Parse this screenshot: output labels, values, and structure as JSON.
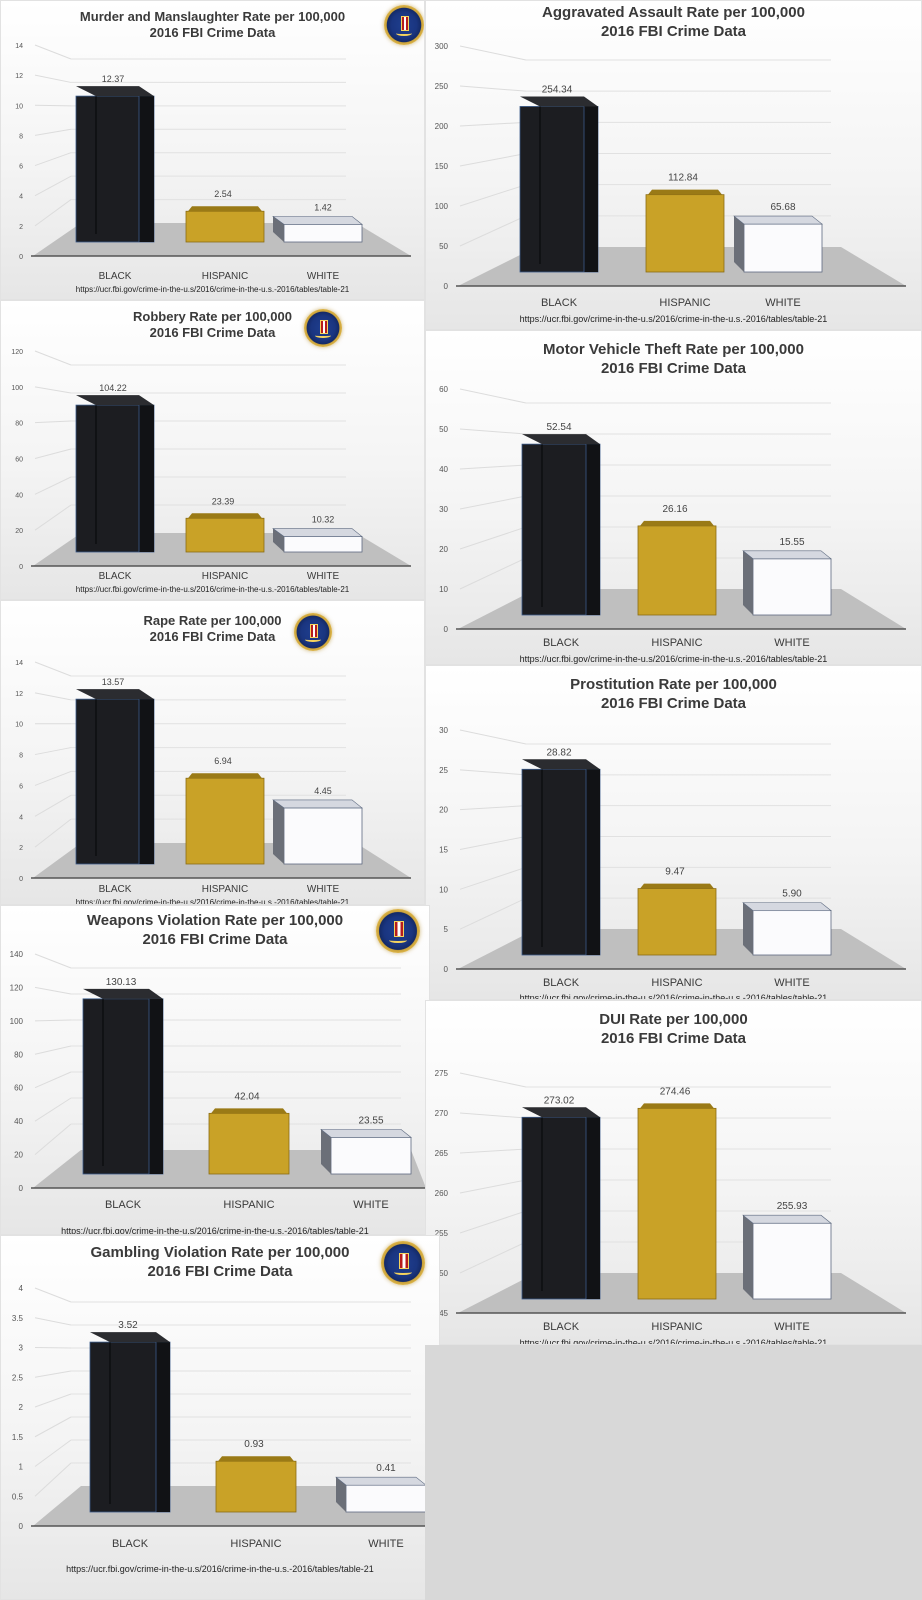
{
  "page": {
    "source_url": "https://ucr.fbi.gov/crime-in-the-u.s/2016/crime-in-the-u.s.-2016/tables/table-21",
    "subtitle": "2016 FBI Crime Data",
    "seal_icon": "fbi-seal-icon",
    "categories": [
      "BLACK",
      "HISPANIC",
      "WHITE"
    ],
    "colors": {
      "black": "#1c1d21",
      "hispanic": "#c9a227",
      "white": "#ffffff",
      "floor": "#bdbdbd",
      "background": "#d9d9d9"
    }
  },
  "panels": [
    {
      "id": "murder",
      "title": "Murder and Manslaughter Rate per 100,000",
      "subtitle": "2016 FBI Crime Data",
      "source": "https://ucr.fbi.gov/crime-in-the-u.s/2016/crime-in-the-u.s.-2016/tables/table-21"
    },
    {
      "id": "aggravated-assault",
      "title": "Aggravated Assault Rate per 100,000",
      "subtitle": "2016 FBI Crime Data",
      "source": "https://ucr.fbi.gov/crime-in-the-u.s/2016/crime-in-the-u.s.-2016/tables/table-21"
    },
    {
      "id": "robbery",
      "title": "Robbery Rate per 100,000",
      "subtitle": "2016 FBI Crime Data",
      "source": "https://ucr.fbi.gov/crime-in-the-u.s/2016/crime-in-the-u.s.-2016/tables/table-21"
    },
    {
      "id": "motor-vehicle-theft",
      "title": "Motor Vehicle Theft Rate per 100,000",
      "subtitle": "2016 FBI Crime Data",
      "source": "https://ucr.fbi.gov/crime-in-the-u.s/2016/crime-in-the-u.s.-2016/tables/table-21"
    },
    {
      "id": "rape",
      "title": "Rape Rate per 100,000",
      "subtitle": "2016 FBI Crime Data",
      "source": "https://ucr.fbi.gov/crime-in-the-u.s/2016/crime-in-the-u.s.-2016/tables/table-21"
    },
    {
      "id": "prostitution",
      "title": "Prostitution Rate per 100,000",
      "subtitle": "2016 FBI Crime Data",
      "source": "https://ucr.fbi.gov/crime-in-the-u.s/2016/crime-in-the-u.s.-2016/tables/table-21"
    },
    {
      "id": "weapons-violation",
      "title": "Weapons Violation Rate per 100,000",
      "subtitle": "2016 FBI Crime Data",
      "source": "https://ucr.fbi.gov/crime-in-the-u.s/2016/crime-in-the-u.s.-2016/tables/table-21"
    },
    {
      "id": "dui",
      "title": "DUI Rate per 100,000",
      "subtitle": "2016 FBI Crime Data",
      "source": "https://ucr.fbi.gov/crime-in-the-u.s/2016/crime-in-the-u.s.-2016/tables/table-21"
    },
    {
      "id": "gambling-violation",
      "title": "Gambling Violation Rate per 100,000",
      "subtitle": "2016 FBI Crime Data",
      "source": "https://ucr.fbi.gov/crime-in-the-u.s/2016/crime-in-the-u.s.-2016/tables/table-21"
    }
  ],
  "chart_data": [
    {
      "type": "bar",
      "title": "Murder and Manslaughter Rate per 100,000",
      "subtitle": "2016 FBI Crime Data",
      "categories": [
        "BLACK",
        "HISPANIC",
        "WHITE"
      ],
      "values": [
        12.37,
        2.54,
        1.42
      ],
      "value_labels": [
        "12.37",
        "2.54",
        "1.42"
      ],
      "yticks": [
        0,
        2,
        4,
        6,
        8,
        10,
        12,
        14
      ],
      "ylim": [
        0,
        14
      ],
      "xlabel": "",
      "ylabel": "",
      "grid": true,
      "legend": "none",
      "style": "3d-column",
      "source": "https://ucr.fbi.gov/crime-in-the-u.s/2016/crime-in-the-u.s.-2016/tables/table-21"
    },
    {
      "type": "bar",
      "title": "Aggravated Assault Rate per 100,000",
      "subtitle": "2016 FBI Crime Data",
      "categories": [
        "BLACK",
        "HISPANIC",
        "WHITE"
      ],
      "values": [
        254.34,
        112.84,
        65.68
      ],
      "value_labels": [
        "254.34",
        "112.84",
        "65.68"
      ],
      "yticks": [
        0,
        50,
        100,
        150,
        200,
        250,
        300
      ],
      "ylim": [
        0,
        300
      ],
      "xlabel": "",
      "ylabel": "",
      "grid": true,
      "legend": "none",
      "style": "3d-column",
      "source": "https://ucr.fbi.gov/crime-in-the-u.s/2016/crime-in-the-u.s.-2016/tables/table-21"
    },
    {
      "type": "bar",
      "title": "Robbery Rate per 100,000",
      "subtitle": "2016 FBI Crime Data",
      "categories": [
        "BLACK",
        "HISPANIC",
        "WHITE"
      ],
      "values": [
        104.22,
        23.39,
        10.32
      ],
      "value_labels": [
        "104.22",
        "23.39",
        "10.32"
      ],
      "yticks": [
        0,
        20,
        40,
        60,
        80,
        100,
        120
      ],
      "ylim": [
        0,
        120
      ],
      "xlabel": "",
      "ylabel": "",
      "grid": true,
      "legend": "none",
      "style": "3d-column",
      "source": "https://ucr.fbi.gov/crime-in-the-u.s/2016/crime-in-the-u.s.-2016/tables/table-21"
    },
    {
      "type": "bar",
      "title": "Motor Vehicle Theft Rate per 100,000",
      "subtitle": "2016 FBI Crime Data",
      "categories": [
        "BLACK",
        "HISPANIC",
        "WHITE"
      ],
      "values": [
        52.54,
        26.16,
        15.55
      ],
      "value_labels": [
        "52.54",
        "26.16",
        "15.55"
      ],
      "yticks": [
        0,
        10,
        20,
        30,
        40,
        50,
        60
      ],
      "ylim": [
        0,
        60
      ],
      "xlabel": "",
      "ylabel": "",
      "grid": true,
      "legend": "none",
      "style": "3d-column",
      "source": "https://ucr.fbi.gov/crime-in-the-u.s/2016/crime-in-the-u.s.-2016/tables/table-21"
    },
    {
      "type": "bar",
      "title": "Rape Rate per 100,000",
      "subtitle": "2016 FBI Crime Data",
      "categories": [
        "BLACK",
        "HISPANIC",
        "WHITE"
      ],
      "values": [
        13.57,
        6.94,
        4.45
      ],
      "value_labels": [
        "13.57",
        "6.94",
        "4.45"
      ],
      "yticks": [
        0,
        2,
        4,
        6,
        8,
        10,
        12,
        14
      ],
      "ylim": [
        0,
        14
      ],
      "xlabel": "",
      "ylabel": "",
      "grid": true,
      "legend": "none",
      "style": "3d-column",
      "source": "https://ucr.fbi.gov/crime-in-the-u.s/2016/crime-in-the-u.s.-2016/tables/table-21"
    },
    {
      "type": "bar",
      "title": "Prostitution Rate per 100,000",
      "subtitle": "2016 FBI Crime Data",
      "categories": [
        "BLACK",
        "HISPANIC",
        "WHITE"
      ],
      "values": [
        28.82,
        9.47,
        5.9
      ],
      "value_labels": [
        "28.82",
        "9.47",
        "5.90"
      ],
      "yticks": [
        0,
        5,
        10,
        15,
        20,
        25,
        30
      ],
      "ylim": [
        0,
        30
      ],
      "xlabel": "",
      "ylabel": "",
      "grid": true,
      "legend": "none",
      "style": "3d-column",
      "source": "https://ucr.fbi.gov/crime-in-the-u.s/2016/crime-in-the-u.s.-2016/tables/table-21"
    },
    {
      "type": "bar",
      "title": "Weapons Violation Rate per 100,000",
      "subtitle": "2016 FBI Crime Data",
      "categories": [
        "BLACK",
        "HISPANIC",
        "WHITE"
      ],
      "values": [
        130.13,
        42.04,
        23.55
      ],
      "value_labels": [
        "130.13",
        "42.04",
        "23.55"
      ],
      "yticks": [
        0,
        20,
        40,
        60,
        80,
        100,
        120,
        140
      ],
      "ylim": [
        0,
        140
      ],
      "xlabel": "",
      "ylabel": "",
      "grid": true,
      "legend": "none",
      "style": "3d-column",
      "source": "https://ucr.fbi.gov/crime-in-the-u.s/2016/crime-in-the-u.s.-2016/tables/table-21"
    },
    {
      "type": "bar",
      "title": "DUI Rate per 100,000",
      "subtitle": "2016 FBI Crime Data",
      "categories": [
        "BLACK",
        "HISPANIC",
        "WHITE"
      ],
      "values": [
        273.02,
        274.46,
        255.93
      ],
      "value_labels": [
        "273.02",
        "274.46",
        "255.93"
      ],
      "yticks": [
        245,
        250,
        255,
        260,
        265,
        270,
        275
      ],
      "ylim": [
        245,
        275
      ],
      "xlabel": "",
      "ylabel": "",
      "grid": true,
      "legend": "none",
      "style": "3d-column",
      "source": "https://ucr.fbi.gov/crime-in-the-u.s/2016/crime-in-the-u.s.-2016/tables/table-21"
    },
    {
      "type": "bar",
      "title": "Gambling Violation Rate per 100,000",
      "subtitle": "2016 FBI Crime Data",
      "categories": [
        "BLACK",
        "HISPANIC",
        "WHITE"
      ],
      "values": [
        3.52,
        0.93,
        0.41
      ],
      "value_labels": [
        "3.52",
        "0.93",
        "0.41"
      ],
      "yticks": [
        0,
        0.5,
        1,
        1.5,
        2,
        2.5,
        3,
        3.5,
        4
      ],
      "ylim": [
        0,
        4
      ],
      "xlabel": "",
      "ylabel": "",
      "grid": true,
      "legend": "none",
      "style": "3d-column",
      "source": "https://ucr.fbi.gov/crime-in-the-u.s/2016/crime-in-the-u.s.-2016/tables/table-21"
    }
  ]
}
